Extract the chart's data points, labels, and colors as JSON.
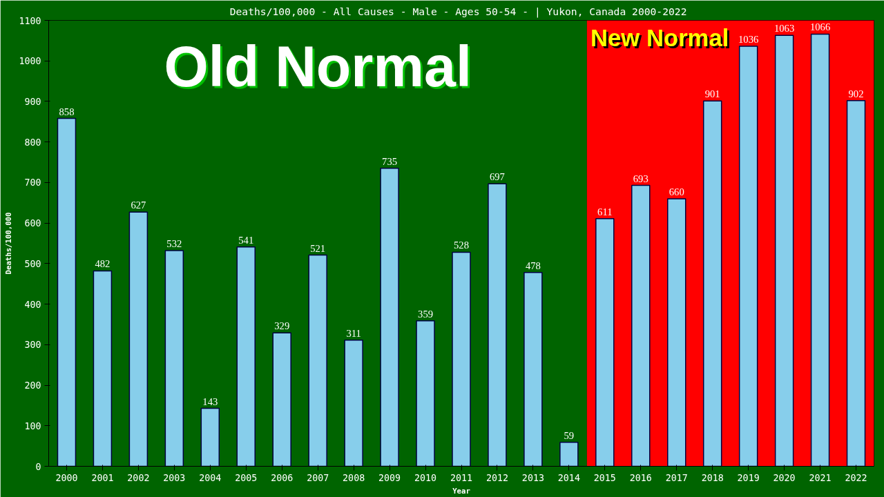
{
  "chart_data": {
    "type": "bar",
    "title": "Deaths/100,000 - All Causes - Male - Ages 50-54 -  | Yukon, Canada 2000-2022",
    "xlabel": "Year",
    "ylabel": "Deaths/100,000",
    "categories": [
      "2000",
      "2001",
      "2002",
      "2003",
      "2004",
      "2005",
      "2006",
      "2007",
      "2008",
      "2009",
      "2010",
      "2011",
      "2012",
      "2013",
      "2014",
      "2015",
      "2016",
      "2017",
      "2018",
      "2019",
      "2020",
      "2021",
      "2022"
    ],
    "values": [
      858,
      482,
      627,
      532,
      143,
      541,
      329,
      521,
      311,
      735,
      359,
      528,
      697,
      478,
      59,
      611,
      693,
      660,
      901,
      1036,
      1063,
      1066,
      902
    ],
    "color": "#87ceeb",
    "data_labels": true,
    "ylim": [
      0,
      1100
    ],
    "yticks": [
      0,
      100,
      200,
      300,
      400,
      500,
      600,
      700,
      800,
      900,
      1000,
      1100
    ],
    "grid": false,
    "bands": [
      {
        "axis": "x",
        "from": "2000",
        "to": "2014",
        "label": "Old Normal",
        "color": "#006400"
      },
      {
        "axis": "x",
        "from": "2015",
        "to": "2022",
        "label": "New Normal",
        "color": "#ff0000"
      }
    ]
  }
}
